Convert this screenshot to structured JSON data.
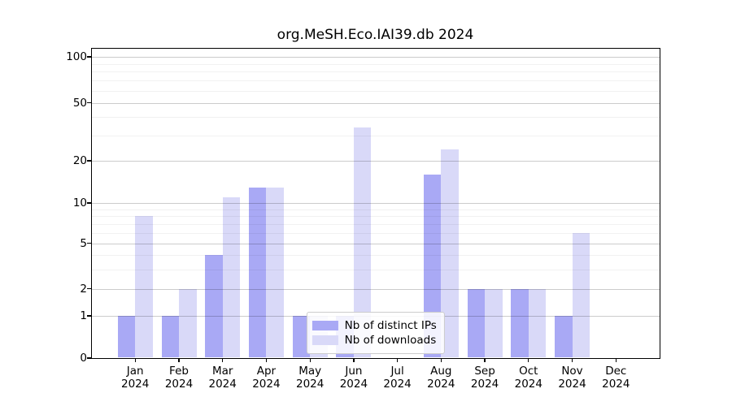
{
  "chart_data": {
    "type": "bar",
    "title": "org.MeSH.Eco.IAI39.db 2024",
    "categories": [
      "Jan",
      "Feb",
      "Mar",
      "Apr",
      "May",
      "Jun",
      "Jul",
      "Aug",
      "Sep",
      "Oct",
      "Nov",
      "Dec"
    ],
    "x_tick_year": "2024",
    "series": [
      {
        "name": "Nb of distinct IPs",
        "color": "#a9a9f5",
        "values": [
          1,
          1,
          4,
          13,
          1,
          1,
          0,
          16,
          2,
          2,
          1,
          0
        ]
      },
      {
        "name": "Nb of downloads",
        "color": "#d9d9f8",
        "values": [
          8,
          2,
          11,
          13,
          1,
          34,
          0,
          24,
          2,
          2,
          6,
          0
        ]
      }
    ],
    "yscale": "log(1+x)",
    "ylim": [
      0,
      100
    ],
    "yticks": [
      0,
      1,
      2,
      5,
      10,
      20,
      50,
      100
    ],
    "minor_yticks": [
      3,
      4,
      6,
      7,
      8,
      9,
      30,
      40,
      60,
      70,
      80,
      90
    ],
    "grid": true,
    "legend_position": "lower center",
    "bar_gap_between_months": true
  }
}
